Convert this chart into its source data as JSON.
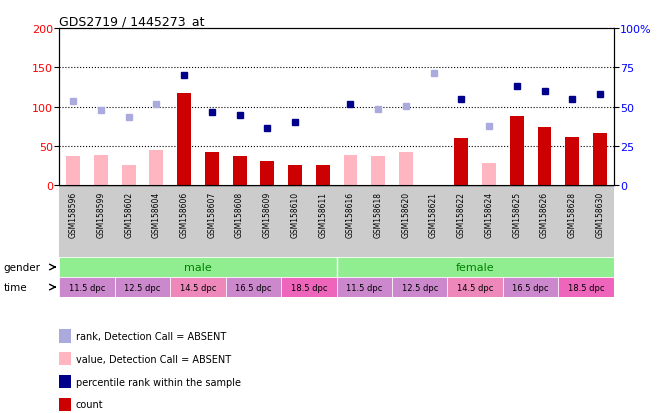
{
  "title": "GDS2719 / 1445273_at",
  "samples": [
    "GSM158596",
    "GSM158599",
    "GSM158602",
    "GSM158604",
    "GSM158606",
    "GSM158607",
    "GSM158608",
    "GSM158609",
    "GSM158610",
    "GSM158611",
    "GSM158616",
    "GSM158618",
    "GSM158620",
    "GSM158621",
    "GSM158622",
    "GSM158624",
    "GSM158625",
    "GSM158626",
    "GSM158628",
    "GSM158630"
  ],
  "count_values": [
    null,
    null,
    null,
    null,
    117,
    43,
    38,
    31,
    26,
    26,
    null,
    null,
    null,
    null,
    60,
    null,
    88,
    74,
    62,
    67
  ],
  "count_absent": [
    38,
    39,
    26,
    45,
    null,
    null,
    null,
    null,
    null,
    null,
    39,
    38,
    42,
    null,
    null,
    28,
    null,
    null,
    null,
    null
  ],
  "percentile_values": [
    null,
    null,
    null,
    null,
    140,
    93,
    90,
    73,
    81,
    null,
    104,
    null,
    null,
    null,
    110,
    null,
    126,
    120,
    110,
    116
  ],
  "percentile_absent": [
    null,
    null,
    null,
    null,
    null,
    null,
    null,
    null,
    null,
    null,
    null,
    null,
    null,
    143,
    null,
    null,
    null,
    null,
    null,
    null
  ],
  "rank_absent": [
    107,
    96,
    87,
    104,
    null,
    null,
    null,
    null,
    null,
    null,
    null,
    97,
    101,
    null,
    null,
    76,
    null,
    null,
    null,
    null
  ],
  "ylim_left": [
    0,
    200
  ],
  "ylim_right": [
    0,
    100
  ],
  "yticks_left": [
    0,
    50,
    100,
    150,
    200
  ],
  "yticks_right": [
    0,
    25,
    50,
    75,
    100
  ],
  "color_count": "#cc0000",
  "color_count_absent": "#ffb6c1",
  "color_rank": "#00008b",
  "color_rank_absent": "#aaaadd",
  "gender_labels": [
    "male",
    "female"
  ],
  "gender_ranges": [
    [
      0,
      9
    ],
    [
      10,
      19
    ]
  ],
  "gender_color": "#90EE90",
  "time_labels": [
    "11.5 dpc",
    "12.5 dpc",
    "14.5 dpc",
    "16.5 dpc",
    "18.5 dpc",
    "11.5 dpc",
    "12.5 dpc",
    "14.5 dpc",
    "16.5 dpc",
    "18.5 dpc"
  ],
  "time_ranges": [
    [
      0,
      1
    ],
    [
      2,
      3
    ],
    [
      4,
      5
    ],
    [
      6,
      7
    ],
    [
      8,
      9
    ],
    [
      10,
      11
    ],
    [
      12,
      13
    ],
    [
      14,
      15
    ],
    [
      16,
      17
    ],
    [
      18,
      19
    ]
  ],
  "time_colors": [
    "#cc88cc",
    "#cc88cc",
    "#ee88bb",
    "#cc88cc",
    "#ee66bb",
    "#cc88cc",
    "#cc88cc",
    "#ee88bb",
    "#cc88cc",
    "#ee66bb"
  ],
  "sample_bg_color": "#cccccc",
  "legend_items": [
    {
      "label": "count",
      "color": "#cc0000"
    },
    {
      "label": "percentile rank within the sample",
      "color": "#00008b"
    },
    {
      "label": "value, Detection Call = ABSENT",
      "color": "#ffb6c1"
    },
    {
      "label": "rank, Detection Call = ABSENT",
      "color": "#aaaadd"
    }
  ]
}
